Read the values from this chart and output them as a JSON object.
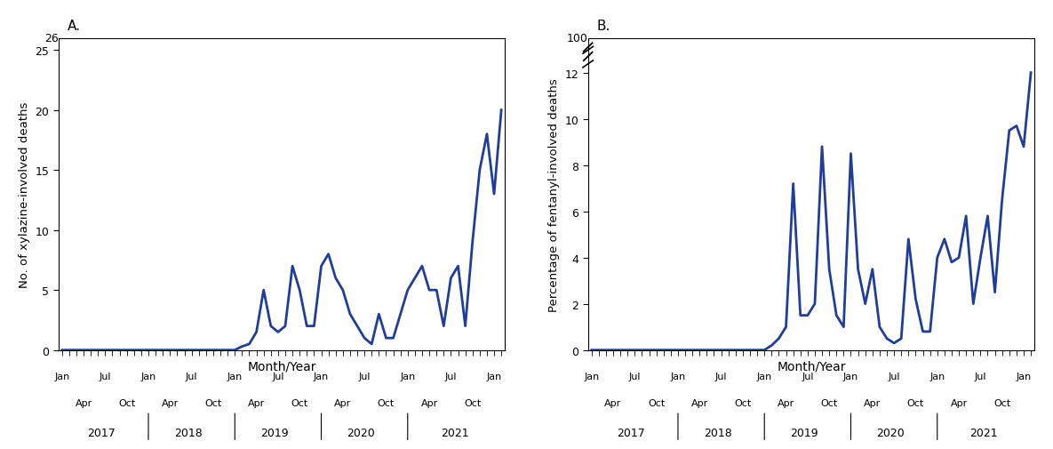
{
  "chart_A_label": "A.",
  "chart_B_label": "B.",
  "ylabel_A": "No. of xylazine-involved deaths",
  "ylabel_B": "Percentage of fentanyl-involved deaths",
  "xlabel": "Month/Year",
  "line_color": "#1f3d99",
  "line_width": 2.0,
  "data_A": [
    0,
    0,
    0,
    0,
    0,
    0,
    0,
    0,
    0,
    0,
    0,
    0,
    0,
    0,
    0,
    0,
    0,
    0,
    0,
    0,
    0,
    0,
    0,
    0,
    0,
    0.3,
    0.5,
    1.5,
    5,
    2,
    1.5,
    2,
    7,
    5,
    2,
    2,
    7,
    8,
    6,
    5,
    3,
    2,
    1,
    0.5,
    3,
    1,
    1,
    3,
    5,
    6,
    7,
    5,
    5,
    2,
    6,
    7,
    2,
    9,
    15,
    18,
    13,
    20
  ],
  "data_B": [
    0,
    0,
    0,
    0,
    0,
    0,
    0,
    0,
    0,
    0,
    0,
    0,
    0,
    0,
    0,
    0,
    0,
    0,
    0,
    0,
    0,
    0,
    0,
    0,
    0,
    0.2,
    0.5,
    1.0,
    7.2,
    1.5,
    1.5,
    2,
    8.8,
    3.5,
    1.5,
    1,
    8.5,
    3.5,
    2,
    3.5,
    1,
    0.5,
    0.3,
    0.5,
    4.8,
    2.2,
    0.8,
    0.8,
    4,
    4.8,
    3.8,
    4,
    5.8,
    2,
    4,
    5.8,
    2.5,
    6.5,
    9.5,
    9.7,
    8.8,
    12
  ],
  "n_months": 62,
  "background_color": "#ffffff"
}
